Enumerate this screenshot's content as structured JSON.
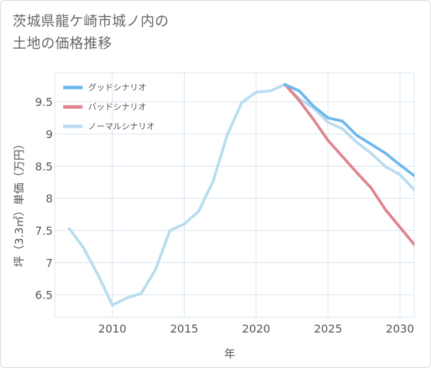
{
  "title_line1": "茨城県龍ケ崎市城ノ内の",
  "title_line2": "土地の価格推移",
  "chart_data": {
    "type": "line",
    "title": "茨城県龍ケ崎市城ノ内の土地の価格推移",
    "xlabel": "年",
    "ylabel": "坪（3.3㎡）単価（万円）",
    "xlim": [
      2006,
      2031
    ],
    "ylim": [
      6.15,
      9.95
    ],
    "x_ticks": [
      2010,
      2015,
      2020,
      2025,
      2030
    ],
    "y_ticks": [
      6.5,
      7,
      7.5,
      8,
      8.5,
      9,
      9.5
    ],
    "x_tick_labels": [
      "2010",
      "2015",
      "2020",
      "2025",
      "2030"
    ],
    "y_tick_labels": [
      "6.5",
      "7",
      "7.5",
      "8",
      "8.5",
      "9",
      "9.5"
    ],
    "grid": true,
    "legend_position": "top-left",
    "series": [
      {
        "name": "グッドシナリオ",
        "color": "#6cb8ec",
        "x": [
          2022,
          2023,
          2024,
          2025,
          2026,
          2027,
          2028,
          2029,
          2030,
          2031
        ],
        "y": [
          9.77,
          9.67,
          9.43,
          9.25,
          9.2,
          8.98,
          8.84,
          8.7,
          8.52,
          8.35
        ]
      },
      {
        "name": "バッドシナリオ",
        "color": "#e0848f",
        "x": [
          2022,
          2023,
          2024,
          2025,
          2026,
          2027,
          2028,
          2029,
          2030,
          2031
        ],
        "y": [
          9.77,
          9.52,
          9.22,
          8.9,
          8.65,
          8.4,
          8.16,
          7.82,
          7.55,
          7.28
        ]
      },
      {
        "name": "ノーマルシナリオ",
        "color": "#b9dcef",
        "x": [
          2007,
          2008,
          2009,
          2010,
          2011,
          2012,
          2013,
          2014,
          2015,
          2016,
          2017,
          2018,
          2019,
          2020,
          2021,
          2022,
          2023,
          2024,
          2025,
          2026,
          2027,
          2028,
          2029,
          2030,
          2031
        ],
        "y": [
          7.53,
          7.23,
          6.81,
          6.34,
          6.45,
          6.52,
          6.89,
          7.5,
          7.6,
          7.8,
          8.26,
          8.99,
          9.49,
          9.65,
          9.67,
          9.77,
          9.55,
          9.4,
          9.18,
          9.08,
          8.87,
          8.7,
          8.49,
          8.37,
          8.13
        ]
      }
    ]
  }
}
